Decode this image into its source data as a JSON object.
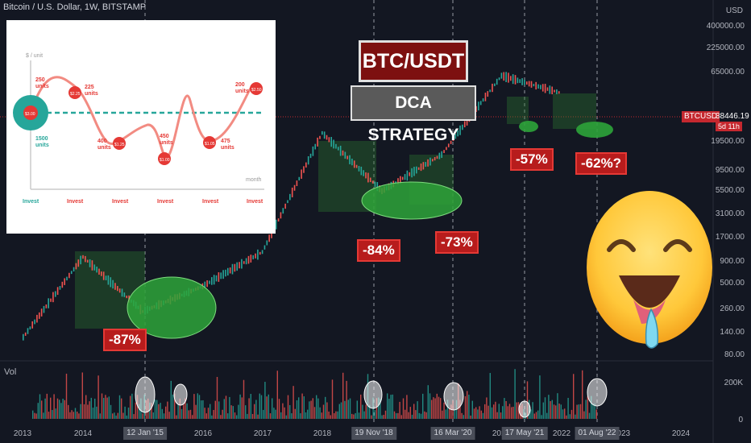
{
  "header": {
    "title": "Bitcoin / U.S. Dollar, 1W, BITSTAMP",
    "currency": "USD"
  },
  "price_axis": {
    "labels": [
      "400000.00",
      "225000.00",
      "65000.00",
      "38446.19",
      "19500.00",
      "9500.00",
      "5500.00",
      "3100.00",
      "1700.00",
      "900.00",
      "500.00",
      "260.00",
      "140.00",
      "80.00"
    ]
  },
  "current": {
    "symbol": "BTCUSD",
    "price": "38446.19",
    "countdown": "5d 11h",
    "color": "#c5282f"
  },
  "time_axis": {
    "years": [
      "2013",
      "2014",
      "2016",
      "2017",
      "2018",
      "2021",
      "2022",
      "2023",
      "2024"
    ],
    "date_tags": [
      "12 Jan '15",
      "19 Nov '18",
      "16 Mar '20",
      "17 May '21",
      "01 Aug '22"
    ]
  },
  "volume": {
    "label": "Vol",
    "ticks": [
      "200K",
      "0"
    ]
  },
  "annotations": {
    "title": "BTC/USDT",
    "subtitle": "DCA STRATEGY",
    "drawdowns": [
      "-87%",
      "-84%",
      "-73%",
      "-57%",
      "-62%?"
    ]
  },
  "inset": {
    "y_label": "$ / unit",
    "x_label": "month",
    "points": [
      {
        "units": "1500\nunits",
        "price": "$3.00"
      },
      {
        "units": "250\nunits",
        "price": ""
      },
      {
        "units": "225\nunits",
        "price": "$2.25"
      },
      {
        "units": "400\nunits",
        "price": "$1.25"
      },
      {
        "units": "450\nunits",
        "price": "$1.00"
      },
      {
        "units": "475\nunits",
        "price": "$1.05"
      },
      {
        "units": "200\nunits",
        "price": "$2.50"
      }
    ],
    "invest_label": "Invest"
  },
  "chart_data": {
    "type": "line",
    "title": "Bitcoin / U.S. Dollar, 1W, BITSTAMP",
    "yscale": "log",
    "x": [
      "2013",
      "2014",
      "2015",
      "2016",
      "2017",
      "2018",
      "2019",
      "2020",
      "2021",
      "2022"
    ],
    "series": [
      {
        "name": "BTCUSD",
        "values": [
          120,
          800,
          220,
          400,
          900,
          15000,
          3800,
          9000,
          58000,
          38446
        ]
      }
    ]
  },
  "colors": {
    "bg": "#131722",
    "up": "#26a69a",
    "down": "#ef5350",
    "accent": "#c5282f"
  }
}
